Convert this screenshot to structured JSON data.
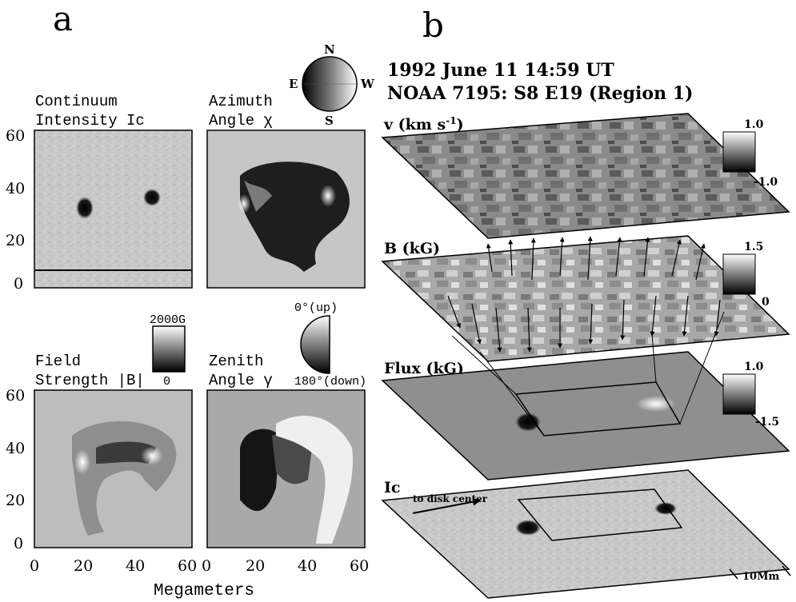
{
  "panel_a": {
    "letter": "a",
    "maps": [
      {
        "title_line1": "Continuum",
        "title_line2": "Intensity Ic"
      },
      {
        "title_line1": "Azimuth",
        "title_line2": "Angle χ"
      },
      {
        "title_line1": "Field",
        "title_line2": "Strength |B|"
      },
      {
        "title_line1": "Zenith",
        "title_line2": "Angle γ"
      }
    ],
    "y_ticks": [
      "60",
      "40",
      "20",
      "0"
    ],
    "x_ticks": [
      "0",
      "20",
      "40",
      "60",
      "0",
      "20",
      "40",
      "60"
    ],
    "xlabel": "Megameters",
    "compass": {
      "n": "N",
      "s": "S",
      "e": "E",
      "w": "W"
    },
    "field_scale": {
      "top": "2000G",
      "bottom": "0"
    },
    "zenith_scale": {
      "top": "0°(up)",
      "bottom": "180°(down)"
    }
  },
  "panel_b": {
    "letter": "b",
    "header_line1": "1992 June 11 14:59 UT",
    "header_line2": "NOAA 7195: S8 E19 (Region 1)",
    "layers": [
      {
        "label": "v (km s-1)",
        "label_main": "v (km s",
        "label_sup": "-1",
        "label_close": ")",
        "scale_top": "1.0",
        "scale_bottom": "-1.0"
      },
      {
        "label": "B (kG)",
        "scale_top": "1.5",
        "scale_bottom": "0"
      },
      {
        "label": "Flux (kG)",
        "scale_top": "1.0",
        "scale_bottom": "-1.5"
      },
      {
        "label": "Ic"
      }
    ],
    "disk_center_label": "to disk center",
    "scale_bar_label": "10Mm"
  }
}
